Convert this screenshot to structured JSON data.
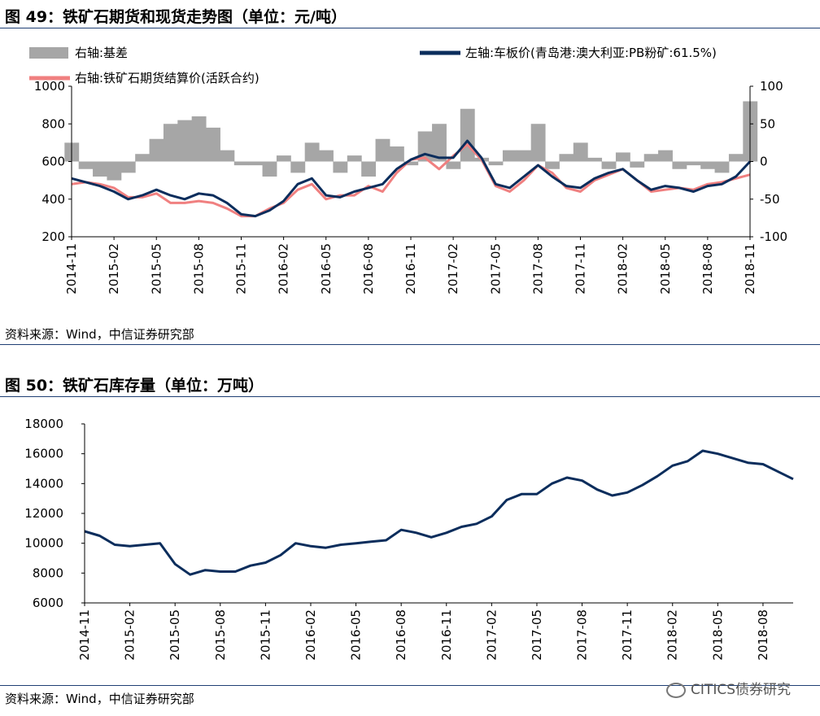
{
  "figures": [
    {
      "title": "图 49：铁矿石期货和现货走势图（单位：元/吨）",
      "source": "资料来源：Wind，中信证券研究部"
    },
    {
      "title": "图 50：铁矿石库存量（单位：万吨）",
      "source": "资料来源：Wind，中信证券研究部"
    }
  ],
  "watermark": "CITICS债券研究",
  "chart_data": [
    {
      "type": "line",
      "x_ticks": [
        "2014-11",
        "2015-02",
        "2015-05",
        "2015-08",
        "2015-11",
        "2016-02",
        "2016-05",
        "2016-08",
        "2016-11",
        "2017-02",
        "2017-05",
        "2017-08",
        "2017-11",
        "2018-02",
        "2018-05",
        "2018-08",
        "2018-11"
      ],
      "left_axis": {
        "ylim": [
          200,
          1000
        ],
        "ticks": [
          "200",
          "400",
          "600",
          "800",
          "1000"
        ]
      },
      "right_axis": {
        "ylim": [
          -100,
          100
        ],
        "ticks": [
          "-100",
          "-50",
          "0",
          "50",
          "100"
        ]
      },
      "series": [
        {
          "name": "右轴:基差",
          "axis": "right",
          "kind": "area",
          "color": "#a6a6a6",
          "x": [
            "2014-11",
            "2014-12",
            "2015-01",
            "2015-02",
            "2015-03",
            "2015-04",
            "2015-05",
            "2015-06",
            "2015-07",
            "2015-08",
            "2015-09",
            "2015-10",
            "2015-11",
            "2015-12",
            "2016-01",
            "2016-02",
            "2016-03",
            "2016-04",
            "2016-05",
            "2016-06",
            "2016-07",
            "2016-08",
            "2016-09",
            "2016-10",
            "2016-11",
            "2016-12",
            "2017-01",
            "2017-02",
            "2017-03",
            "2017-04",
            "2017-05",
            "2017-06",
            "2017-07",
            "2017-08",
            "2017-09",
            "2017-10",
            "2017-11",
            "2017-12",
            "2018-01",
            "2018-02",
            "2018-03",
            "2018-04",
            "2018-05",
            "2018-06",
            "2018-07",
            "2018-08",
            "2018-09",
            "2018-10",
            "2018-11"
          ],
          "values": [
            25,
            -10,
            -20,
            -25,
            -15,
            10,
            30,
            50,
            55,
            60,
            45,
            15,
            -5,
            -5,
            -20,
            8,
            -15,
            25,
            15,
            -15,
            8,
            -20,
            30,
            20,
            -5,
            40,
            50,
            -10,
            70,
            5,
            -5,
            15,
            15,
            50,
            -10,
            10,
            25,
            5,
            -10,
            12,
            -8,
            10,
            15,
            -10,
            -5,
            -10,
            -15,
            10,
            80
          ]
        },
        {
          "name": "左轴:车板价(青岛港:澳大利亚:PB粉矿:61.5%)",
          "axis": "left",
          "kind": "line",
          "color": "#0b2d5c",
          "x": [
            "2014-11",
            "2014-12",
            "2015-01",
            "2015-02",
            "2015-03",
            "2015-04",
            "2015-05",
            "2015-06",
            "2015-07",
            "2015-08",
            "2015-09",
            "2015-10",
            "2015-11",
            "2015-12",
            "2016-01",
            "2016-02",
            "2016-03",
            "2016-04",
            "2016-05",
            "2016-06",
            "2016-07",
            "2016-08",
            "2016-09",
            "2016-10",
            "2016-11",
            "2016-12",
            "2017-01",
            "2017-02",
            "2017-03",
            "2017-04",
            "2017-05",
            "2017-06",
            "2017-07",
            "2017-08",
            "2017-09",
            "2017-10",
            "2017-11",
            "2017-12",
            "2018-01",
            "2018-02",
            "2018-03",
            "2018-04",
            "2018-05",
            "2018-06",
            "2018-07",
            "2018-08",
            "2018-09",
            "2018-10",
            "2018-11"
          ],
          "values": [
            510,
            490,
            470,
            440,
            400,
            420,
            450,
            420,
            400,
            430,
            420,
            380,
            320,
            310,
            340,
            390,
            480,
            510,
            420,
            410,
            440,
            460,
            480,
            560,
            610,
            640,
            620,
            620,
            710,
            620,
            480,
            460,
            520,
            580,
            520,
            470,
            460,
            510,
            540,
            560,
            500,
            450,
            470,
            460,
            440,
            470,
            480,
            520,
            600
          ]
        },
        {
          "name": "右轴:铁矿石期货结算价(活跃合约)",
          "axis": "left",
          "kind": "line",
          "color": "#f08080",
          "x": [
            "2014-11",
            "2014-12",
            "2015-01",
            "2015-02",
            "2015-03",
            "2015-04",
            "2015-05",
            "2015-06",
            "2015-07",
            "2015-08",
            "2015-09",
            "2015-10",
            "2015-11",
            "2015-12",
            "2016-01",
            "2016-02",
            "2016-03",
            "2016-04",
            "2016-05",
            "2016-06",
            "2016-07",
            "2016-08",
            "2016-09",
            "2016-10",
            "2016-11",
            "2016-12",
            "2017-01",
            "2017-02",
            "2017-03",
            "2017-04",
            "2017-05",
            "2017-06",
            "2017-07",
            "2017-08",
            "2017-09",
            "2017-10",
            "2017-11",
            "2017-12",
            "2018-01",
            "2018-02",
            "2018-03",
            "2018-04",
            "2018-05",
            "2018-06",
            "2018-07",
            "2018-08",
            "2018-09",
            "2018-10",
            "2018-11"
          ],
          "values": [
            480,
            490,
            480,
            460,
            410,
            410,
            430,
            380,
            380,
            390,
            380,
            350,
            310,
            310,
            350,
            380,
            450,
            480,
            400,
            420,
            420,
            470,
            440,
            540,
            610,
            620,
            560,
            630,
            690,
            610,
            470,
            440,
            500,
            580,
            540,
            460,
            440,
            500,
            530,
            560,
            500,
            440,
            450,
            460,
            450,
            480,
            490,
            510,
            530
          ]
        }
      ]
    },
    {
      "type": "line",
      "x_ticks": [
        "2014-11",
        "2015-02",
        "2015-05",
        "2015-08",
        "2015-11",
        "2016-02",
        "2016-05",
        "2016-08",
        "2016-11",
        "2017-02",
        "2017-05",
        "2017-08",
        "2017-11",
        "2018-02",
        "2018-05",
        "2018-08"
      ],
      "ylim": [
        6000,
        18000
      ],
      "y_ticks": [
        "6000",
        "8000",
        "10000",
        "12000",
        "14000",
        "16000",
        "18000"
      ],
      "series": [
        {
          "color": "#0b2d5c",
          "x": [
            "2014-11",
            "2014-12",
            "2015-01",
            "2015-02",
            "2015-03",
            "2015-04",
            "2015-05",
            "2015-06",
            "2015-07",
            "2015-08",
            "2015-09",
            "2015-10",
            "2015-11",
            "2015-12",
            "2016-01",
            "2016-02",
            "2016-03",
            "2016-04",
            "2016-05",
            "2016-06",
            "2016-07",
            "2016-08",
            "2016-09",
            "2016-10",
            "2016-11",
            "2016-12",
            "2017-01",
            "2017-02",
            "2017-03",
            "2017-04",
            "2017-05",
            "2017-06",
            "2017-07",
            "2017-08",
            "2017-09",
            "2017-10",
            "2017-11",
            "2017-12",
            "2018-01",
            "2018-02",
            "2018-03",
            "2018-04",
            "2018-05",
            "2018-06",
            "2018-07",
            "2018-08",
            "2018-09",
            "2018-10"
          ],
          "values": [
            10800,
            10500,
            9900,
            9800,
            9900,
            10000,
            8600,
            7900,
            8200,
            8100,
            8100,
            8500,
            8700,
            9200,
            10000,
            9800,
            9700,
            9900,
            10000,
            10100,
            10200,
            10900,
            10700,
            10400,
            10700,
            11100,
            11300,
            11800,
            12900,
            13300,
            13300,
            14000,
            14400,
            14200,
            13600,
            13200,
            13400,
            13900,
            14500,
            15200,
            15500,
            16200,
            16000,
            15700,
            15400,
            15300,
            14800,
            14300
          ]
        }
      ]
    }
  ]
}
